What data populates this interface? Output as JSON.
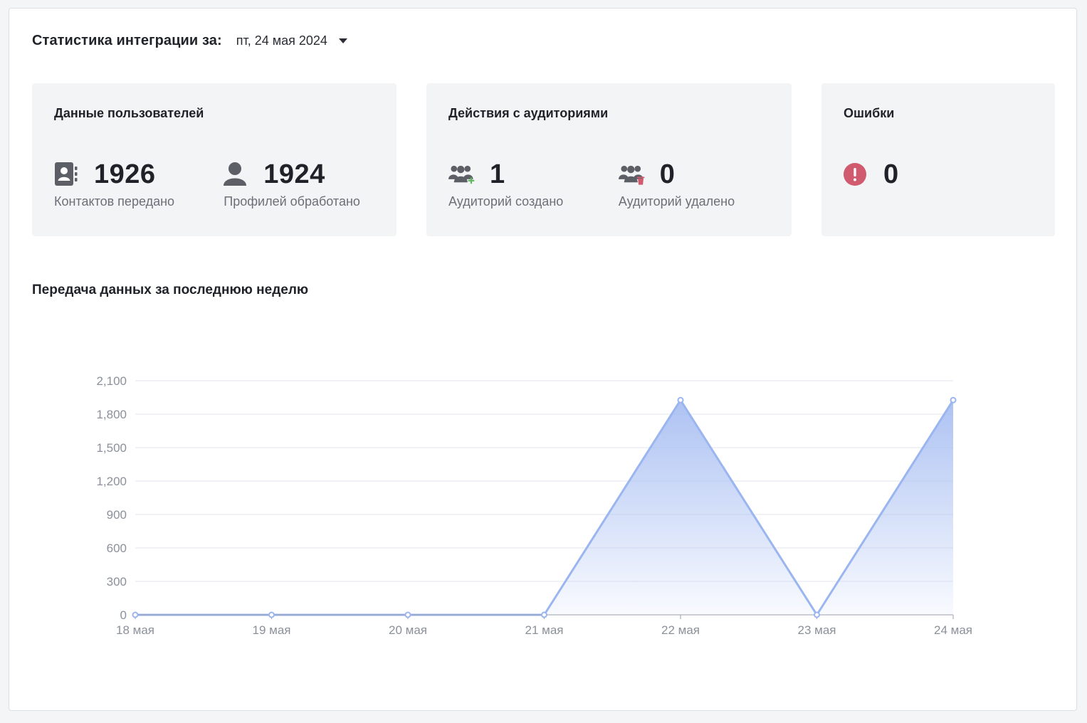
{
  "header": {
    "title": "Статистика интеграции за:",
    "date_value": "пт, 24 мая 2024"
  },
  "cards": {
    "user_data": {
      "title": "Данные пользователей",
      "metrics": [
        {
          "icon": "contacts-book-icon",
          "value": "1926",
          "label": "Контактов передано"
        },
        {
          "icon": "user-icon",
          "value": "1924",
          "label": "Профилей обработано"
        }
      ]
    },
    "audiences": {
      "title": "Действия с аудиториями",
      "metrics": [
        {
          "icon": "group-add-icon",
          "value": "1",
          "label": "Аудиторий создано"
        },
        {
          "icon": "group-delete-icon",
          "value": "0",
          "label": "Аудиторий удалено"
        }
      ]
    },
    "errors": {
      "title": "Ошибки",
      "metrics": [
        {
          "icon": "exclamation-circle-icon",
          "value": "0",
          "label": ""
        }
      ]
    }
  },
  "colors": {
    "line": "#9ab5f0",
    "area_top": "#a9bff2",
    "error_icon": "#d05a6e",
    "add_badge": "#5fb85f",
    "delete_badge": "#d05a6e",
    "icon_gray": "#5c5f66"
  },
  "chart": {
    "title": "Передача данных за последнюю неделю"
  },
  "chart_data": {
    "type": "area",
    "title": "",
    "categories": [
      "18 мая",
      "19 мая",
      "20 мая",
      "21 мая",
      "22 мая",
      "23 мая",
      "24 мая"
    ],
    "series": [
      {
        "values": [
          0,
          0,
          0,
          0,
          1926,
          0,
          1926
        ]
      }
    ],
    "y_ticks": [
      "0",
      "300",
      "600",
      "900",
      "1,200",
      "1,500",
      "1,800",
      "2,100"
    ],
    "ylim": [
      0,
      2100
    ],
    "grid": true,
    "legend": "none"
  }
}
